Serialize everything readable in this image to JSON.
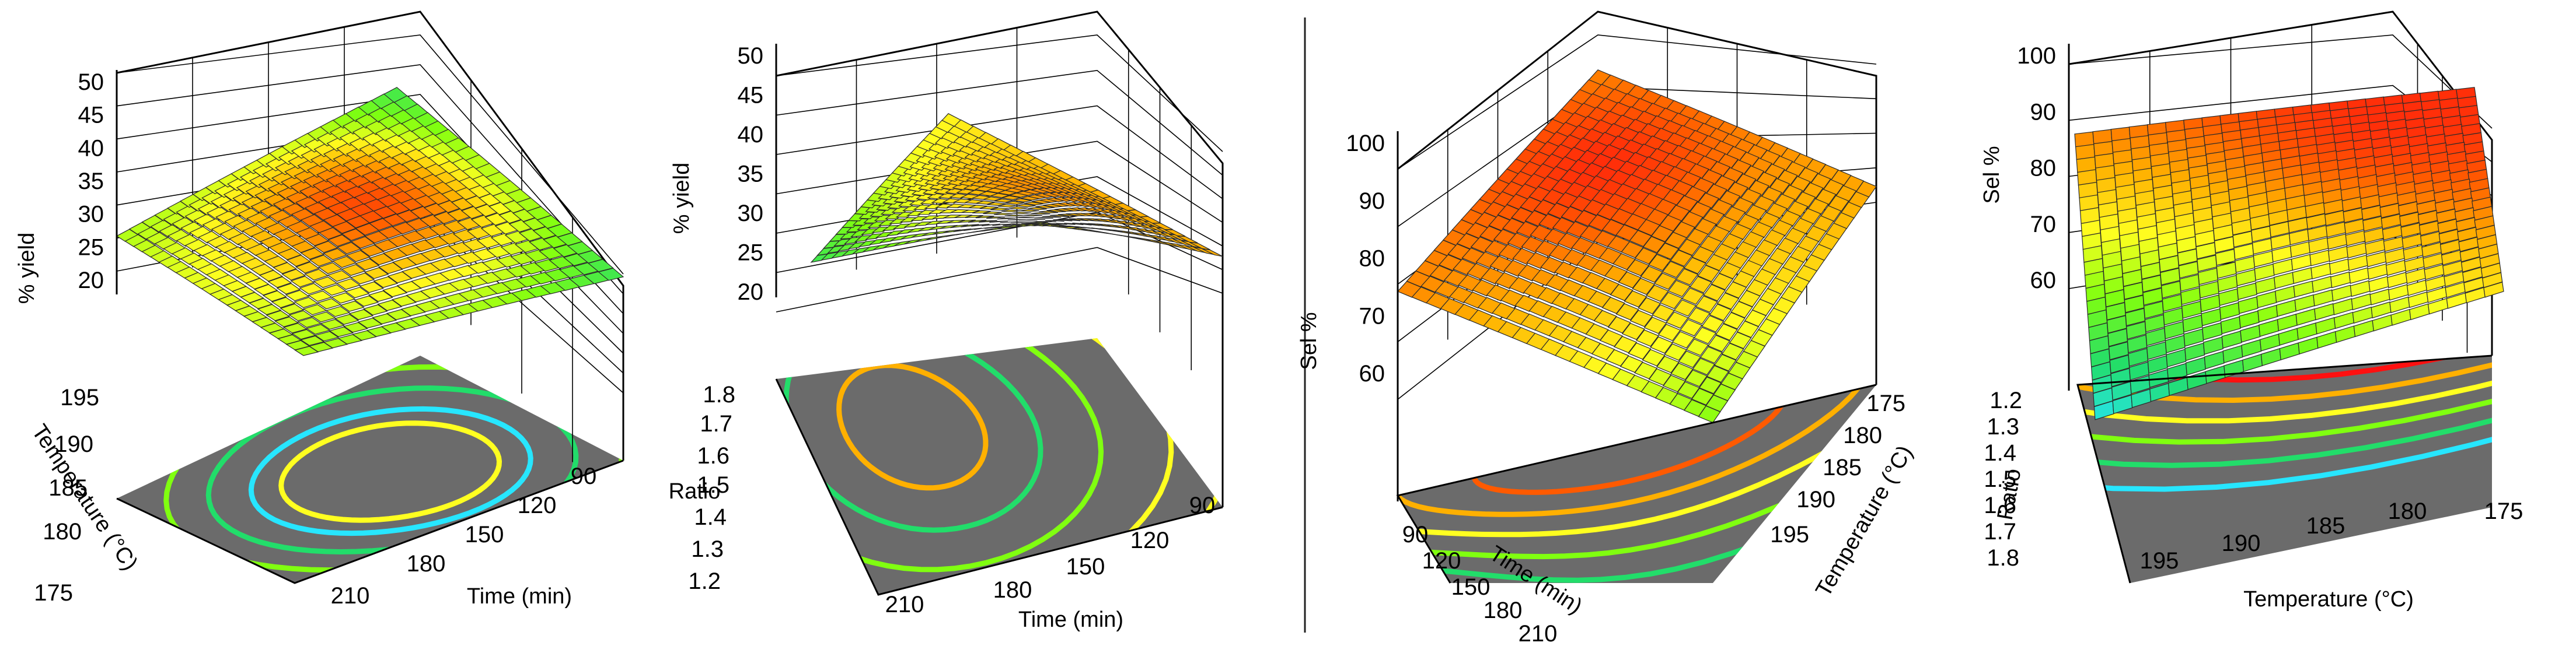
{
  "figure": {
    "divider_color": "#222222",
    "colormap": [
      "#27e6ff",
      "#22dd6a",
      "#80ff10",
      "#ffff20",
      "#ffb000",
      "#ff5a00",
      "#ff1010"
    ]
  },
  "chart_data": [
    {
      "type": "surface3d",
      "id": "yield-time-temperature",
      "zlabel": "% yield",
      "zticks": [
        "50",
        "45",
        "40",
        "35",
        "30",
        "25",
        "20"
      ],
      "zlim": [
        20,
        50
      ],
      "xlabel": "Time (min)",
      "xticks": [
        "90",
        "120",
        "150",
        "180",
        "210"
      ],
      "ylabel": "Temperature (°C)",
      "yticks": [
        "195",
        "190",
        "185",
        "180",
        "175"
      ],
      "surface": {
        "corners": {
          "time210_temp175": 31,
          "time210_temp195": 31,
          "time90_temp195": 25,
          "time90_temp175": 24
        },
        "peak_value": 46,
        "peak_position": "center-back"
      },
      "contour_colors": [
        "#27e6ff",
        "#22dd6a",
        "#80ff10",
        "#ffff20",
        "#ffff20"
      ]
    },
    {
      "type": "surface3d",
      "id": "yield-time-ratio",
      "zlabel": "% yield",
      "zticks": [
        "50",
        "45",
        "40",
        "35",
        "30",
        "25",
        "20"
      ],
      "zlim": [
        20,
        50
      ],
      "xlabel": "Time (min)",
      "xticks": [
        "90",
        "120",
        "150",
        "180",
        "210"
      ],
      "ylabel": "Ratio",
      "yticks": [
        "1.8",
        "1.7",
        "1.6",
        "1.5",
        "1.4",
        "1.3",
        "1.2"
      ],
      "surface": {
        "corners": {
          "time210_ratio1.2": 26,
          "time210_ratio1.8": 33,
          "time90_ratio1.8": 40,
          "time90_ratio1.2": 35
        },
        "peak_value": 42,
        "peak_position": "center-right"
      },
      "contour_colors": [
        "#22dd6a",
        "#80ff10",
        "#ffff20",
        "#ffff20",
        "#ffb000"
      ]
    },
    {
      "type": "surface3d",
      "id": "sel-time-temperature",
      "zlabel": "Sel %",
      "zticks": [
        "100",
        "90",
        "80",
        "70",
        "60"
      ],
      "zlim": [
        55,
        100
      ],
      "xlabel": "Time (min)",
      "xticks": [
        "90",
        "120",
        "150",
        "180",
        "210"
      ],
      "ylabel": "Temperature (°C)",
      "yticks": [
        "175",
        "180",
        "185",
        "190",
        "195"
      ],
      "surface": {
        "corners": {
          "time90_temp175": 84,
          "time90_temp195": 86,
          "time210_temp195": 70,
          "time210_temp175": 88
        },
        "peak_value": 97,
        "peak_position": "back-center"
      },
      "contour_colors": [
        "#ff5a00",
        "#ffb000",
        "#ffff20",
        "#80ff10",
        "#22dd6a"
      ]
    },
    {
      "type": "surface3d",
      "id": "sel-temperature-ratio",
      "zlabel": "Sel %",
      "zticks": [
        "100",
        "90",
        "80",
        "70",
        "60"
      ],
      "zlim": [
        55,
        100
      ],
      "xlabel": "Temperature (°C)",
      "xticks": [
        "195",
        "190",
        "185",
        "180",
        "175"
      ],
      "ylabel": "Ratio",
      "yticks": [
        "1.2",
        "1.3",
        "1.4",
        "1.5",
        "1.6",
        "1.7",
        "1.8"
      ],
      "surface": {
        "corners": {
          "temp195_ratio1.2": 88,
          "temp175_ratio1.2": 97,
          "temp175_ratio1.8": 80,
          "temp195_ratio1.8": 56
        },
        "peak_value": 97,
        "peak_position": "back-right"
      },
      "contour_colors": [
        "#ff1010",
        "#ffb000",
        "#ffff20",
        "#80ff10",
        "#22dd6a",
        "#27e6ff"
      ]
    }
  ]
}
